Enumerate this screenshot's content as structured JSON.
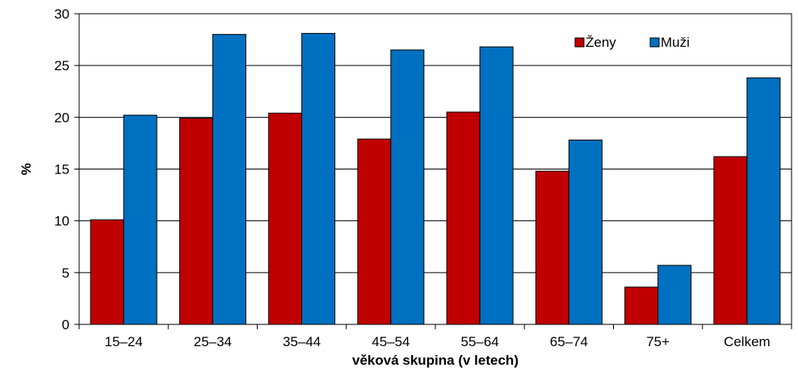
{
  "chart_data": {
    "type": "bar",
    "title": "",
    "xlabel": "věková skupina (v letech)",
    "ylabel": "%",
    "ylim": [
      0,
      30
    ],
    "yticks": [
      "0",
      "5",
      "10",
      "15",
      "20",
      "25",
      "30"
    ],
    "grid": true,
    "legend_position": "top-right",
    "categories": [
      "15–24",
      "25–34",
      "35–44",
      "45–54",
      "55–64",
      "65–74",
      "75+",
      "Celkem"
    ],
    "series": [
      {
        "name": "Ženy",
        "color": "#C00000",
        "values": [
          10.1,
          19.9,
          20.4,
          17.9,
          20.5,
          14.8,
          3.6,
          16.2
        ]
      },
      {
        "name": "Muži",
        "color": "#0070C0",
        "values": [
          20.2,
          28.0,
          28.1,
          26.5,
          26.8,
          17.8,
          5.7,
          23.8
        ]
      }
    ]
  }
}
